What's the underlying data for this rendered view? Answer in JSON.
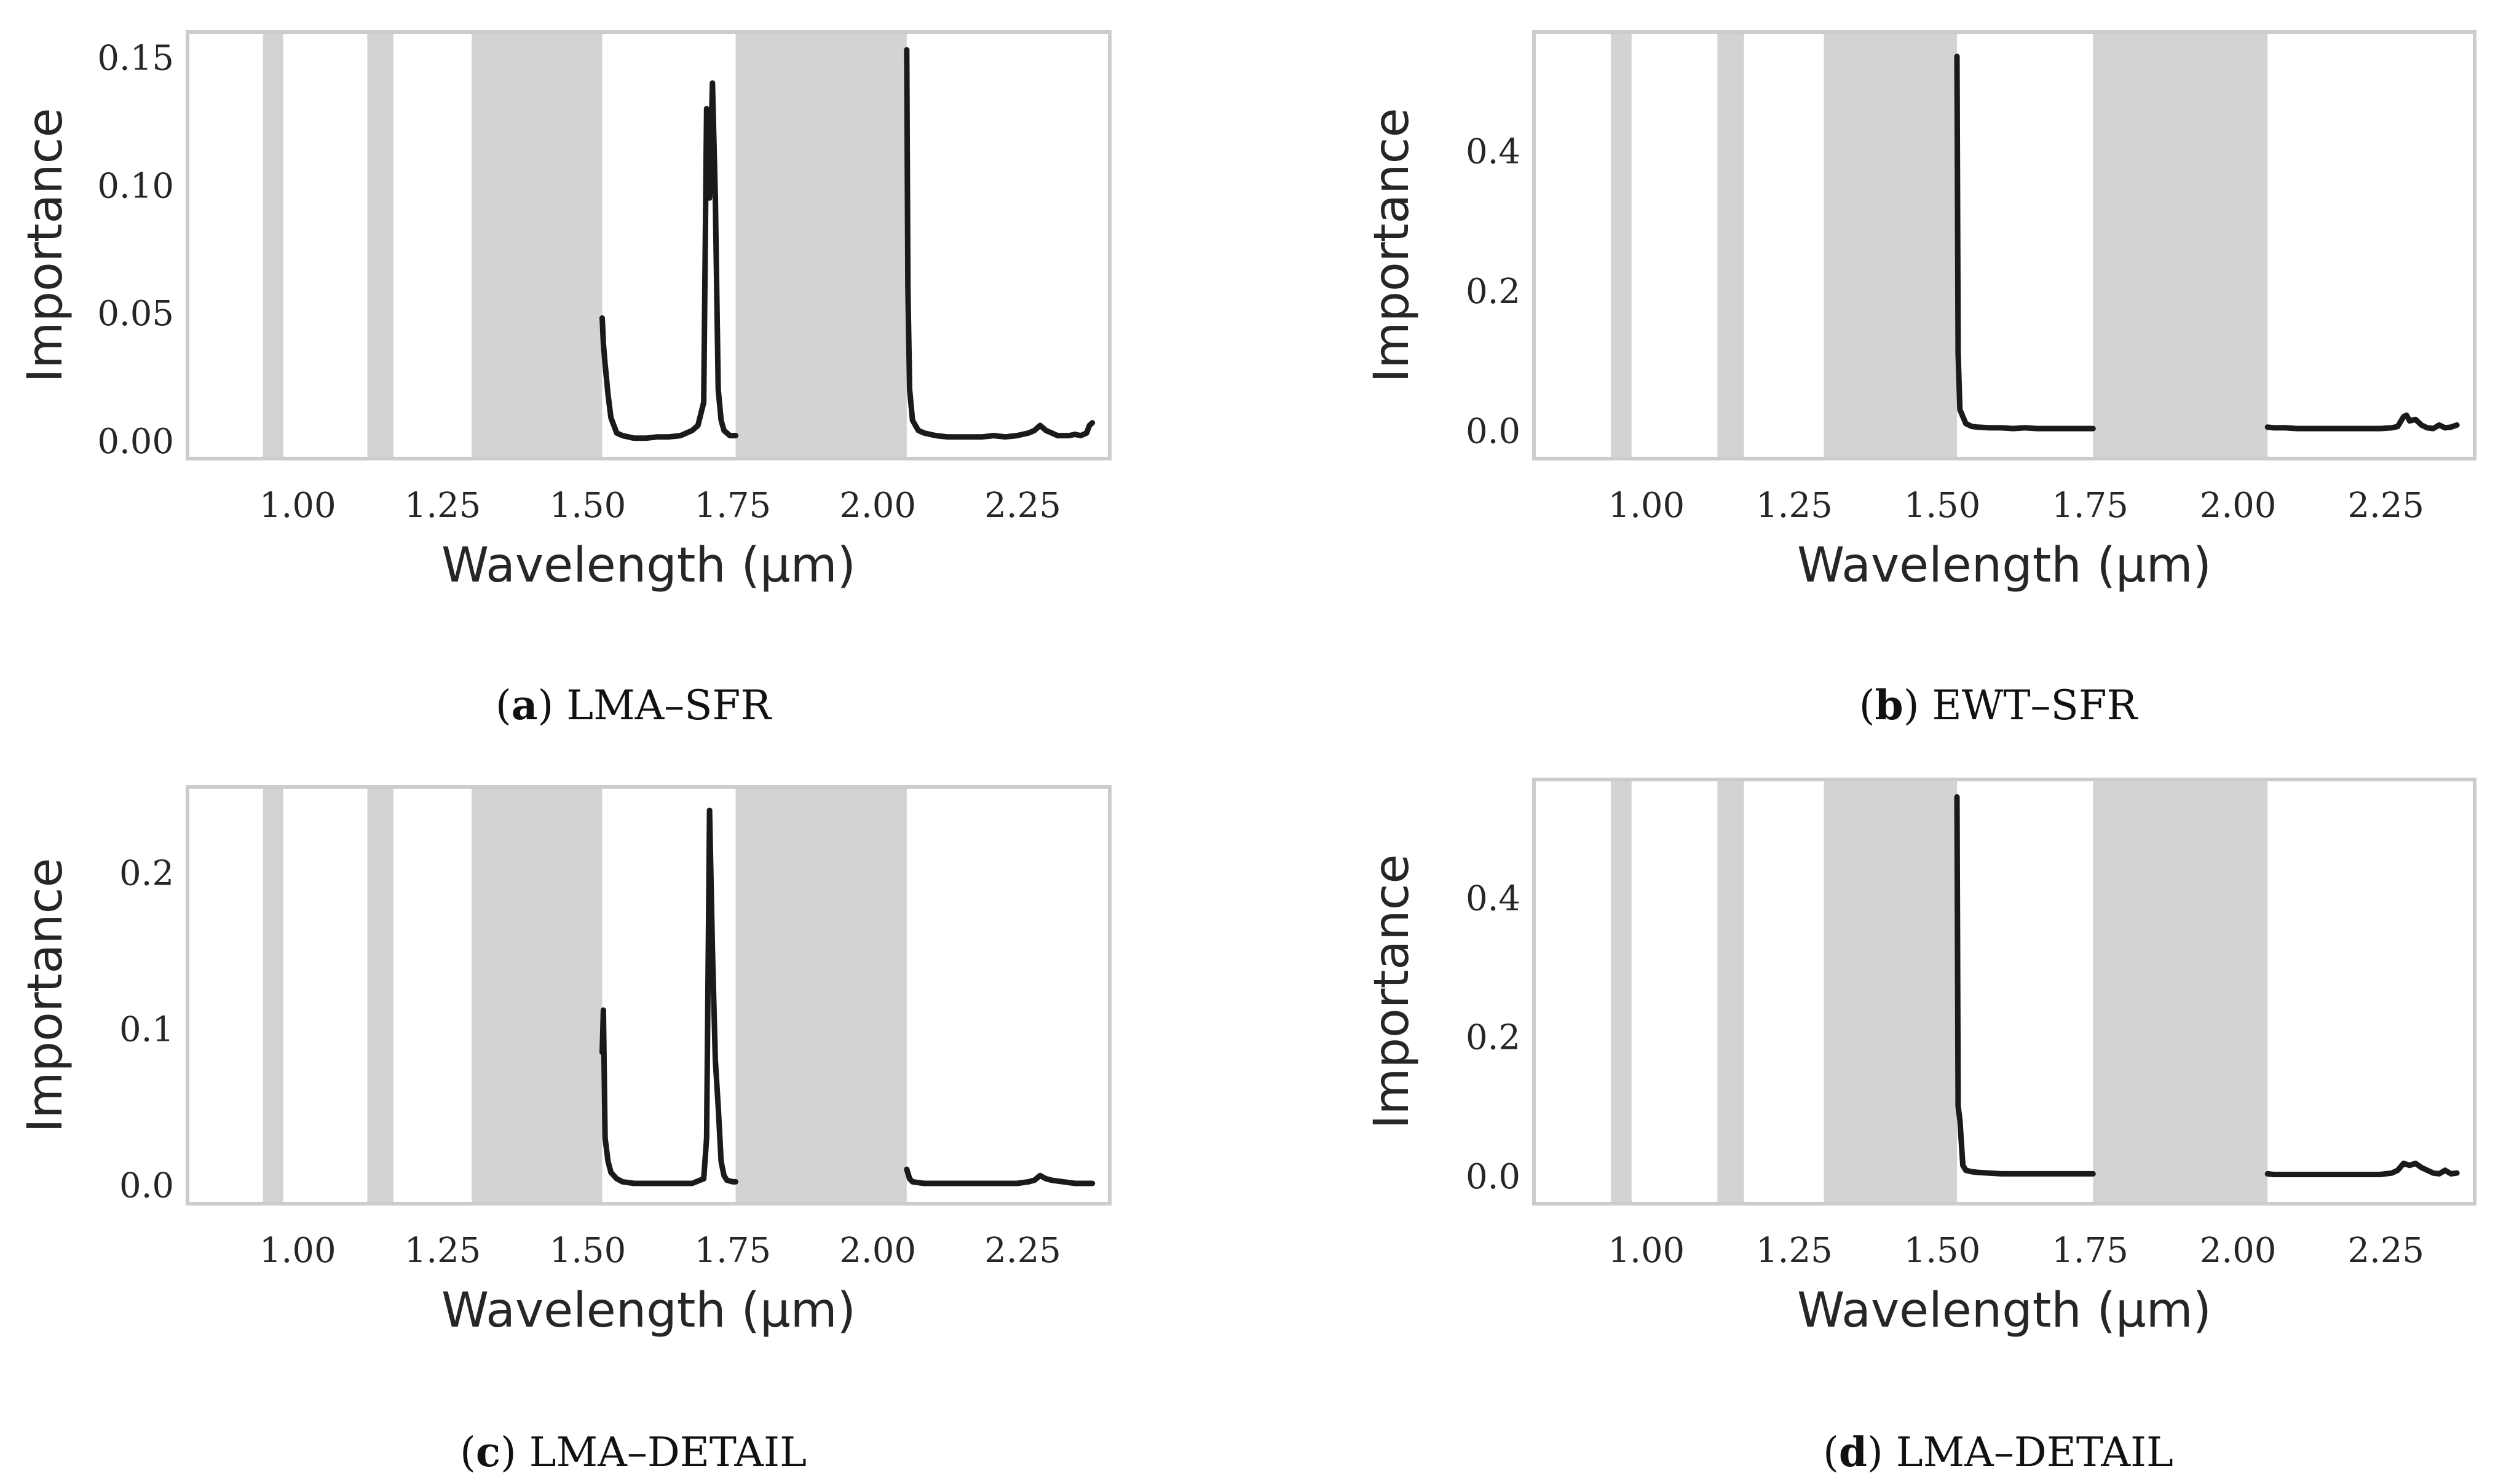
{
  "style": {
    "line_color": "#1a1a1a",
    "band_color": "#d3d3d3",
    "frame_color": "#cccccc",
    "text_color": "#262626"
  },
  "chart_data": [
    {
      "type": "line",
      "panel": "a",
      "caption_letter": "a",
      "caption_text": "LMA–SFR",
      "xlabel": "Wavelength (μm)",
      "ylabel": "Importance",
      "xlim": [
        0.81,
        2.4
      ],
      "ylim": [
        -0.007,
        0.16
      ],
      "xticks": [
        1.0,
        1.25,
        1.5,
        1.75,
        2.0,
        2.25
      ],
      "xtick_labels": [
        "1.00",
        "1.25",
        "1.50",
        "1.75",
        "2.00",
        "2.25"
      ],
      "yticks": [
        0.0,
        0.05,
        0.1,
        0.15
      ],
      "ytick_labels": [
        "0.00",
        "0.05",
        "0.10",
        "0.15"
      ],
      "grid": false,
      "masked_bands": [
        [
          0.94,
          0.975
        ],
        [
          1.12,
          1.165
        ],
        [
          1.3,
          1.525
        ],
        [
          1.755,
          2.05
        ]
      ],
      "series": [
        {
          "name": "importance",
          "segments": [
            {
              "x": [
                1.525,
                1.527,
                1.53,
                1.535,
                1.54,
                1.55,
                1.56,
                1.58,
                1.6,
                1.62,
                1.64,
                1.66,
                1.68,
                1.69,
                1.7,
                1.705,
                1.71,
                1.715,
                1.72,
                1.725,
                1.73,
                1.735,
                1.74,
                1.745,
                1.75,
                1.755
              ],
              "y": [
                0.048,
                0.038,
                0.03,
                0.018,
                0.009,
                0.003,
                0.002,
                0.001,
                0.001,
                0.0015,
                0.0015,
                0.002,
                0.004,
                0.006,
                0.015,
                0.13,
                0.095,
                0.14,
                0.095,
                0.02,
                0.008,
                0.004,
                0.003,
                0.002,
                0.002,
                0.002
              ]
            },
            {
              "x": [
                2.05,
                2.052,
                2.055,
                2.06,
                2.07,
                2.08,
                2.1,
                2.12,
                2.15,
                2.18,
                2.2,
                2.22,
                2.24,
                2.26,
                2.27,
                2.28,
                2.29,
                2.3,
                2.31,
                2.32,
                2.33,
                2.34,
                2.35,
                2.36,
                2.365,
                2.37
              ],
              "y": [
                0.153,
                0.06,
                0.02,
                0.008,
                0.004,
                0.003,
                0.002,
                0.0015,
                0.0015,
                0.0015,
                0.002,
                0.0015,
                0.002,
                0.003,
                0.004,
                0.006,
                0.004,
                0.003,
                0.002,
                0.002,
                0.002,
                0.0025,
                0.002,
                0.003,
                0.006,
                0.007
              ]
            }
          ]
        }
      ]
    },
    {
      "type": "line",
      "panel": "b",
      "caption_letter": "b",
      "caption_text": "EWT–SFR",
      "xlabel": "Wavelength (μm)",
      "ylabel": "Importance",
      "xlim": [
        0.81,
        2.4
      ],
      "ylim": [
        -0.04,
        0.57
      ],
      "xticks": [
        1.0,
        1.25,
        1.5,
        1.75,
        2.0,
        2.25
      ],
      "xtick_labels": [
        "1.00",
        "1.25",
        "1.50",
        "1.75",
        "2.00",
        "2.25"
      ],
      "yticks": [
        0.0,
        0.2,
        0.4
      ],
      "ytick_labels": [
        "0.0",
        "0.2",
        "0.4"
      ],
      "grid": false,
      "masked_bands": [
        [
          0.94,
          0.975
        ],
        [
          1.12,
          1.165
        ],
        [
          1.3,
          1.525
        ],
        [
          1.755,
          2.05
        ]
      ],
      "series": [
        {
          "name": "importance",
          "segments": [
            {
              "x": [
                1.525,
                1.527,
                1.53,
                1.535,
                1.54,
                1.55,
                1.56,
                1.58,
                1.6,
                1.62,
                1.64,
                1.66,
                1.68,
                1.7,
                1.72,
                1.74,
                1.755
              ],
              "y": [
                0.535,
                0.11,
                0.03,
                0.02,
                0.01,
                0.006,
                0.005,
                0.004,
                0.004,
                0.003,
                0.004,
                0.003,
                0.003,
                0.003,
                0.003,
                0.003,
                0.003
              ]
            },
            {
              "x": [
                2.05,
                2.06,
                2.08,
                2.1,
                2.12,
                2.15,
                2.18,
                2.2,
                2.22,
                2.24,
                2.26,
                2.27,
                2.28,
                2.285,
                2.29,
                2.3,
                2.31,
                2.32,
                2.33,
                2.34,
                2.35,
                2.36,
                2.37
              ],
              "y": [
                0.005,
                0.004,
                0.004,
                0.003,
                0.003,
                0.003,
                0.003,
                0.003,
                0.003,
                0.003,
                0.004,
                0.006,
                0.02,
                0.022,
                0.014,
                0.016,
                0.008,
                0.004,
                0.003,
                0.008,
                0.004,
                0.005,
                0.008
              ]
            }
          ]
        }
      ]
    },
    {
      "type": "line",
      "panel": "c",
      "caption_letter": "c",
      "caption_text": "LMA–DETAIL",
      "xlabel": "Wavelength (μm)",
      "ylabel": "Importance",
      "xlim": [
        0.81,
        2.4
      ],
      "ylim": [
        -0.012,
        0.255
      ],
      "xticks": [
        1.0,
        1.25,
        1.5,
        1.75,
        2.0,
        2.25
      ],
      "xtick_labels": [
        "1.00",
        "1.25",
        "1.50",
        "1.75",
        "2.00",
        "2.25"
      ],
      "yticks": [
        0.0,
        0.1,
        0.2
      ],
      "ytick_labels": [
        "0.0",
        "0.1",
        "0.2"
      ],
      "grid": false,
      "masked_bands": [
        [
          0.94,
          0.975
        ],
        [
          1.12,
          1.165
        ],
        [
          1.3,
          1.525
        ],
        [
          1.755,
          2.05
        ]
      ],
      "series": [
        {
          "name": "importance",
          "segments": [
            {
              "x": [
                1.525,
                1.527,
                1.53,
                1.535,
                1.54,
                1.55,
                1.56,
                1.58,
                1.6,
                1.62,
                1.64,
                1.66,
                1.68,
                1.7,
                1.705,
                1.71,
                1.715,
                1.72,
                1.725,
                1.73,
                1.735,
                1.74,
                1.75,
                1.755
              ],
              "y": [
                0.085,
                0.112,
                0.03,
                0.015,
                0.008,
                0.004,
                0.002,
                0.001,
                0.001,
                0.001,
                0.001,
                0.001,
                0.001,
                0.004,
                0.03,
                0.24,
                0.15,
                0.08,
                0.05,
                0.015,
                0.006,
                0.003,
                0.002,
                0.002
              ]
            },
            {
              "x": [
                2.05,
                2.055,
                2.06,
                2.08,
                2.1,
                2.12,
                2.15,
                2.18,
                2.2,
                2.22,
                2.24,
                2.26,
                2.27,
                2.28,
                2.29,
                2.3,
                2.32,
                2.34,
                2.36,
                2.37
              ],
              "y": [
                0.01,
                0.004,
                0.002,
                0.001,
                0.001,
                0.001,
                0.001,
                0.001,
                0.001,
                0.001,
                0.001,
                0.002,
                0.003,
                0.006,
                0.004,
                0.003,
                0.002,
                0.001,
                0.001,
                0.001
              ]
            }
          ]
        }
      ]
    },
    {
      "type": "line",
      "panel": "d",
      "caption_letter": "d",
      "caption_text": "LMA–DETAIL",
      "xlabel": "Wavelength (μm)",
      "ylabel": "Importance",
      "xlim": [
        0.81,
        2.4
      ],
      "ylim": [
        -0.04,
        0.57
      ],
      "xticks": [
        1.0,
        1.25,
        1.5,
        1.75,
        2.0,
        2.25
      ],
      "xtick_labels": [
        "1.00",
        "1.25",
        "1.50",
        "1.75",
        "2.00",
        "2.25"
      ],
      "yticks": [
        0.0,
        0.2,
        0.4
      ],
      "ytick_labels": [
        "0.0",
        "0.2",
        "0.4"
      ],
      "grid": false,
      "masked_bands": [
        [
          0.94,
          0.975
        ],
        [
          1.12,
          1.165
        ],
        [
          1.3,
          1.525
        ],
        [
          1.755,
          2.05
        ]
      ],
      "series": [
        {
          "name": "importance",
          "segments": [
            {
              "x": [
                1.525,
                1.527,
                1.53,
                1.535,
                1.54,
                1.55,
                1.56,
                1.58,
                1.6,
                1.62,
                1.64,
                1.66,
                1.68,
                1.7,
                1.72,
                1.74,
                1.755
              ],
              "y": [
                0.545,
                0.1,
                0.08,
                0.015,
                0.008,
                0.006,
                0.005,
                0.004,
                0.003,
                0.003,
                0.003,
                0.003,
                0.003,
                0.003,
                0.003,
                0.003,
                0.003
              ]
            },
            {
              "x": [
                2.05,
                2.06,
                2.08,
                2.1,
                2.12,
                2.15,
                2.18,
                2.2,
                2.22,
                2.24,
                2.26,
                2.27,
                2.28,
                2.29,
                2.3,
                2.31,
                2.32,
                2.33,
                2.34,
                2.35,
                2.36,
                2.37
              ],
              "y": [
                0.003,
                0.002,
                0.002,
                0.002,
                0.002,
                0.002,
                0.002,
                0.002,
                0.002,
                0.002,
                0.004,
                0.008,
                0.018,
                0.015,
                0.018,
                0.012,
                0.008,
                0.004,
                0.003,
                0.008,
                0.003,
                0.004
              ]
            }
          ]
        }
      ]
    }
  ]
}
